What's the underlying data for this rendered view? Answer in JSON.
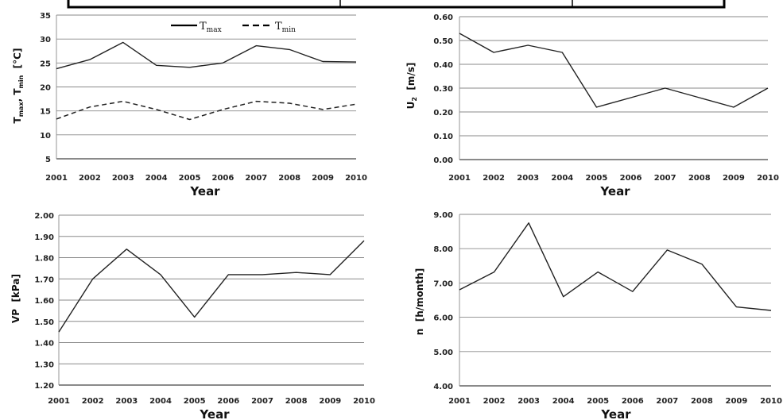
{
  "chart_data": [
    {
      "type": "line",
      "x": [
        "2001",
        "2002",
        "2003",
        "2004",
        "2005",
        "2006",
        "2007",
        "2008",
        "2009",
        "2010"
      ],
      "xlabel": "Year",
      "ylabel": "Tmax, Tmin [°C]",
      "ylim": [
        5,
        35
      ],
      "yticks": [
        "5",
        "10",
        "15",
        "20",
        "25",
        "30",
        "35"
      ],
      "grid": true,
      "legend_position": "top",
      "series": [
        {
          "name": "Tmax",
          "style": "solid",
          "values": [
            23.8,
            25.7,
            29.3,
            24.5,
            24.1,
            25.0,
            28.6,
            27.8,
            25.3,
            25.2
          ]
        },
        {
          "name": "Tmin",
          "style": "dashed",
          "values": [
            13.3,
            15.8,
            17.0,
            15.3,
            13.2,
            15.3,
            17.0,
            16.6,
            15.3,
            16.4
          ]
        }
      ]
    },
    {
      "type": "line",
      "x": [
        "2001",
        "2002",
        "2003",
        "2004",
        "2005",
        "2006",
        "2007",
        "2008",
        "2009",
        "2010"
      ],
      "xlabel": "Year",
      "ylabel": "U2 [m/s]",
      "ylim": [
        0,
        0.6
      ],
      "yticks": [
        "0.00",
        "0.10",
        "0.20",
        "0.30",
        "0.40",
        "0.50",
        "0.60"
      ],
      "grid": true,
      "series": [
        {
          "values": [
            0.53,
            0.45,
            0.48,
            0.45,
            0.22,
            0.26,
            0.3,
            0.26,
            0.22,
            0.3
          ]
        }
      ]
    },
    {
      "type": "line",
      "x": [
        "2001",
        "2002",
        "2003",
        "2004",
        "2005",
        "2006",
        "2007",
        "2008",
        "2009",
        "2010"
      ],
      "xlabel": "Year",
      "ylabel": "VP [kPa]",
      "ylim": [
        1.2,
        2.0
      ],
      "yticks": [
        "1.20",
        "1.30",
        "1.40",
        "1.50",
        "1.60",
        "1.70",
        "1.80",
        "1.90",
        "2.00"
      ],
      "grid": true,
      "series": [
        {
          "values": [
            1.45,
            1.7,
            1.84,
            1.72,
            1.52,
            1.72,
            1.72,
            1.73,
            1.72,
            1.88
          ]
        }
      ]
    },
    {
      "type": "line",
      "x": [
        "2001",
        "2002",
        "2003",
        "2004",
        "2005",
        "2006",
        "2007",
        "2008",
        "2009",
        "2010"
      ],
      "xlabel": "Year",
      "ylabel": "n [h/month]",
      "ylim": [
        4,
        9
      ],
      "yticks": [
        "4.00",
        "5.00",
        "6.00",
        "7.00",
        "8.00",
        "9.00"
      ],
      "grid": true,
      "series": [
        {
          "values": [
            6.8,
            7.32,
            8.75,
            6.6,
            7.32,
            6.75,
            7.96,
            7.55,
            6.3,
            6.2
          ]
        }
      ]
    }
  ],
  "legend": {
    "tmax": {
      "main": "T",
      "sub": "max"
    },
    "tmin": {
      "main": "T",
      "sub": "min"
    }
  },
  "axis_labels": {
    "p0_y": {
      "a": "T",
      "a_sub": "max",
      "b": ", T",
      "b_sub": "min",
      "c": "  [°C]"
    },
    "p1_y": {
      "a": "U",
      "a_sub": "2",
      "c": "  [m/s]"
    },
    "p2_y": "VP  [kPa]",
    "p3_y": "n  [h/month]"
  }
}
